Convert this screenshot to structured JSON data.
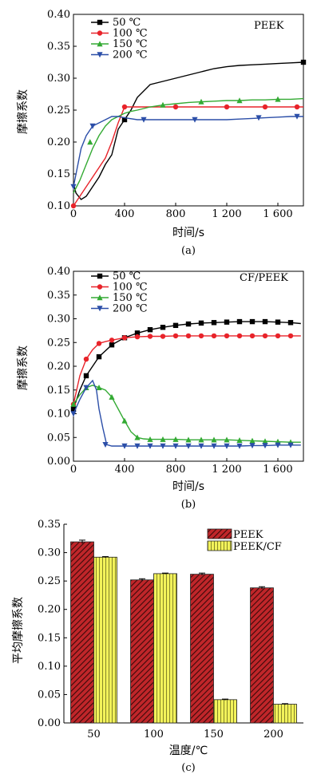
{
  "chart_data": [
    {
      "type": "line",
      "panel_label": "(a)",
      "annotation": "PEEK",
      "xlabel": "时间/s",
      "ylabel": "摩擦系数",
      "xlim": [
        0,
        1800
      ],
      "ylim": [
        0.1,
        0.4
      ],
      "xticks": [
        0,
        400,
        800,
        1200,
        1600
      ],
      "xtick_labels": [
        "0",
        "400",
        "800",
        "1 200",
        "1 600"
      ],
      "yticks": [
        0.1,
        0.15,
        0.2,
        0.25,
        0.3,
        0.35,
        0.4
      ],
      "ytick_labels": [
        "0.10",
        "0.15",
        "0.20",
        "0.25",
        "0.30",
        "0.35",
        "0.40"
      ],
      "legend_position": "top-left",
      "series": [
        {
          "name": "50 ℃",
          "color": "#000000",
          "marker": "square",
          "x": [
            0,
            20,
            60,
            100,
            150,
            200,
            250,
            300,
            350,
            400,
            450,
            500,
            600,
            700,
            800,
            900,
            1000,
            1100,
            1200,
            1300,
            1400,
            1500,
            1600,
            1700,
            1800
          ],
          "y": [
            0.135,
            0.12,
            0.11,
            0.115,
            0.13,
            0.145,
            0.165,
            0.18,
            0.22,
            0.235,
            0.25,
            0.27,
            0.29,
            0.295,
            0.3,
            0.305,
            0.31,
            0.315,
            0.318,
            0.32,
            0.321,
            0.322,
            0.323,
            0.324,
            0.325
          ],
          "marker_x": [
            400,
            1800
          ],
          "marker_y": [
            0.235,
            0.325
          ]
        },
        {
          "name": "100 ℃",
          "color": "#e8232a",
          "marker": "circle",
          "x": [
            0,
            50,
            100,
            150,
            200,
            250,
            300,
            350,
            400,
            450,
            500,
            600,
            700,
            800,
            900,
            1000,
            1100,
            1200,
            1300,
            1400,
            1500,
            1600,
            1700,
            1800
          ],
          "y": [
            0.1,
            0.115,
            0.13,
            0.145,
            0.16,
            0.175,
            0.2,
            0.23,
            0.255,
            0.255,
            0.255,
            0.255,
            0.255,
            0.255,
            0.255,
            0.255,
            0.255,
            0.255,
            0.255,
            0.255,
            0.255,
            0.255,
            0.255,
            0.255
          ],
          "marker_x": [
            0,
            400,
            800,
            1200,
            1500,
            1750
          ],
          "marker_y": [
            0.1,
            0.255,
            0.255,
            0.255,
            0.255,
            0.255
          ]
        },
        {
          "name": "150 ℃",
          "color": "#33aa33",
          "marker": "triangle-up",
          "x": [
            0,
            50,
            100,
            150,
            200,
            250,
            300,
            350,
            400,
            450,
            500,
            600,
            700,
            800,
            900,
            1000,
            1100,
            1200,
            1300,
            1400,
            1500,
            1600,
            1700,
            1800
          ],
          "y": [
            0.12,
            0.14,
            0.165,
            0.19,
            0.21,
            0.225,
            0.235,
            0.24,
            0.245,
            0.248,
            0.25,
            0.255,
            0.258,
            0.26,
            0.262,
            0.263,
            0.264,
            0.265,
            0.265,
            0.266,
            0.266,
            0.267,
            0.267,
            0.268
          ],
          "marker_x": [
            130,
            700,
            1000,
            1300,
            1600
          ],
          "marker_y": [
            0.2,
            0.258,
            0.263,
            0.265,
            0.267
          ]
        },
        {
          "name": "200 ℃",
          "color": "#2b4ea8",
          "marker": "triangle-down",
          "x": [
            0,
            30,
            60,
            100,
            150,
            200,
            250,
            300,
            350,
            400,
            500,
            600,
            700,
            800,
            900,
            1000,
            1100,
            1200,
            1300,
            1400,
            1500,
            1600,
            1700,
            1800
          ],
          "y": [
            0.13,
            0.16,
            0.19,
            0.21,
            0.225,
            0.23,
            0.235,
            0.24,
            0.24,
            0.238,
            0.235,
            0.235,
            0.235,
            0.235,
            0.235,
            0.235,
            0.235,
            0.235,
            0.236,
            0.237,
            0.238,
            0.239,
            0.24,
            0.24
          ],
          "marker_x": [
            0,
            150,
            550,
            950,
            1450,
            1750
          ],
          "marker_y": [
            0.13,
            0.225,
            0.235,
            0.235,
            0.238,
            0.24
          ]
        }
      ]
    },
    {
      "type": "line",
      "panel_label": "(b)",
      "annotation": "CF/PEEK",
      "xlabel": "时间/s",
      "ylabel": "摩擦系数",
      "xlim": [
        0,
        1800
      ],
      "ylim": [
        0.0,
        0.4
      ],
      "xticks": [
        0,
        400,
        800,
        1200,
        1600
      ],
      "xtick_labels": [
        "0",
        "400",
        "800",
        "1 200",
        "1 600"
      ],
      "yticks": [
        0.0,
        0.05,
        0.1,
        0.15,
        0.2,
        0.25,
        0.3,
        0.35,
        0.4
      ],
      "ytick_labels": [
        "0.00",
        "0.05",
        "0.10",
        "0.15",
        "0.20",
        "0.25",
        "0.30",
        "0.35",
        "0.40"
      ],
      "legend_position": "top-center",
      "series": [
        {
          "name": "50 ℃",
          "color": "#000000",
          "marker": "square",
          "x": [
            0,
            50,
            100,
            150,
            200,
            300,
            400,
            500,
            600,
            700,
            800,
            900,
            1000,
            1100,
            1200,
            1300,
            1400,
            1500,
            1600,
            1700,
            1780
          ],
          "y": [
            0.11,
            0.15,
            0.18,
            0.2,
            0.22,
            0.245,
            0.26,
            0.27,
            0.277,
            0.282,
            0.286,
            0.289,
            0.291,
            0.292,
            0.293,
            0.294,
            0.294,
            0.294,
            0.293,
            0.292,
            0.29
          ],
          "marker_x": [
            0,
            100,
            200,
            300,
            400,
            500,
            600,
            700,
            800,
            900,
            1000,
            1100,
            1200,
            1300,
            1400,
            1500,
            1600,
            1700
          ],
          "marker_y": [
            0.11,
            0.18,
            0.22,
            0.245,
            0.26,
            0.27,
            0.277,
            0.282,
            0.286,
            0.289,
            0.291,
            0.292,
            0.293,
            0.294,
            0.294,
            0.294,
            0.293,
            0.292
          ]
        },
        {
          "name": "100 ℃",
          "color": "#e8232a",
          "marker": "circle",
          "x": [
            0,
            50,
            100,
            150,
            200,
            250,
            300,
            400,
            500,
            600,
            700,
            800,
            900,
            1000,
            1100,
            1200,
            1300,
            1400,
            1500,
            1600,
            1700,
            1780
          ],
          "y": [
            0.12,
            0.18,
            0.215,
            0.235,
            0.248,
            0.252,
            0.255,
            0.26,
            0.262,
            0.263,
            0.263,
            0.264,
            0.264,
            0.264,
            0.264,
            0.264,
            0.264,
            0.264,
            0.264,
            0.264,
            0.264,
            0.264
          ],
          "marker_x": [
            0,
            100,
            200,
            300,
            400,
            500,
            600,
            700,
            800,
            900,
            1000,
            1100,
            1200,
            1300,
            1400,
            1500,
            1600,
            1700
          ],
          "marker_y": [
            0.12,
            0.215,
            0.248,
            0.255,
            0.26,
            0.262,
            0.263,
            0.263,
            0.264,
            0.264,
            0.264,
            0.264,
            0.264,
            0.264,
            0.264,
            0.264,
            0.264,
            0.264
          ]
        },
        {
          "name": "150 ℃",
          "color": "#33aa33",
          "marker": "triangle-up",
          "x": [
            0,
            50,
            100,
            150,
            200,
            250,
            300,
            350,
            400,
            450,
            500,
            550,
            600,
            700,
            800,
            900,
            1000,
            1100,
            1200,
            1300,
            1400,
            1500,
            1600,
            1700,
            1780
          ],
          "y": [
            0.12,
            0.14,
            0.155,
            0.16,
            0.155,
            0.15,
            0.135,
            0.11,
            0.085,
            0.062,
            0.05,
            0.047,
            0.046,
            0.046,
            0.046,
            0.045,
            0.045,
            0.045,
            0.045,
            0.044,
            0.043,
            0.042,
            0.041,
            0.04,
            0.04
          ],
          "marker_x": [
            0,
            100,
            200,
            300,
            400,
            500,
            600,
            700,
            800,
            900,
            1000,
            1100,
            1200,
            1300,
            1400,
            1500,
            1600,
            1700
          ],
          "marker_y": [
            0.12,
            0.155,
            0.155,
            0.135,
            0.085,
            0.05,
            0.046,
            0.046,
            0.046,
            0.045,
            0.045,
            0.045,
            0.045,
            0.044,
            0.043,
            0.042,
            0.041,
            0.04
          ]
        },
        {
          "name": "200 ℃",
          "color": "#2b4ea8",
          "marker": "triangle-down",
          "x": [
            0,
            50,
            100,
            150,
            180,
            200,
            230,
            260,
            300,
            400,
            500,
            600,
            700,
            800,
            900,
            1000,
            1100,
            1200,
            1300,
            1400,
            1500,
            1600,
            1700,
            1780
          ],
          "y": [
            0.1,
            0.13,
            0.155,
            0.17,
            0.15,
            0.11,
            0.07,
            0.035,
            0.032,
            0.032,
            0.032,
            0.032,
            0.032,
            0.032,
            0.032,
            0.032,
            0.032,
            0.032,
            0.032,
            0.033,
            0.033,
            0.034,
            0.034,
            0.034
          ],
          "marker_x": [
            0,
            100,
            250,
            400,
            500,
            600,
            700,
            800,
            900,
            1000,
            1100,
            1200,
            1300,
            1400,
            1500,
            1600,
            1700
          ],
          "marker_y": [
            0.1,
            0.155,
            0.035,
            0.032,
            0.032,
            0.032,
            0.032,
            0.032,
            0.032,
            0.032,
            0.032,
            0.032,
            0.032,
            0.033,
            0.033,
            0.034,
            0.034
          ]
        }
      ]
    },
    {
      "type": "bar",
      "panel_label": "(c)",
      "xlabel": "温度/℃",
      "ylabel": "平均摩擦系数",
      "categories": [
        "50",
        "100",
        "150",
        "200"
      ],
      "ylim": [
        0.0,
        0.35
      ],
      "yticks": [
        0.0,
        0.05,
        0.1,
        0.15,
        0.2,
        0.25,
        0.3,
        0.35
      ],
      "ytick_labels": [
        "0.00",
        "0.05",
        "0.10",
        "0.15",
        "0.20",
        "0.25",
        "0.30",
        "0.35"
      ],
      "legend_position": "top-right",
      "series": [
        {
          "name": "PEEK",
          "color": "#8b1a1a",
          "hatch": "diagonal",
          "values": [
            0.319,
            0.252,
            0.262,
            0.238
          ],
          "errors": [
            0.003,
            0.002,
            0.002,
            0.002
          ]
        },
        {
          "name": "PEEK/CF",
          "color": "#e8e84a",
          "hatch": "vertical",
          "values": [
            0.292,
            0.263,
            0.041,
            0.033
          ],
          "errors": [
            0.001,
            0.001,
            0.001,
            0.001
          ]
        }
      ]
    }
  ]
}
